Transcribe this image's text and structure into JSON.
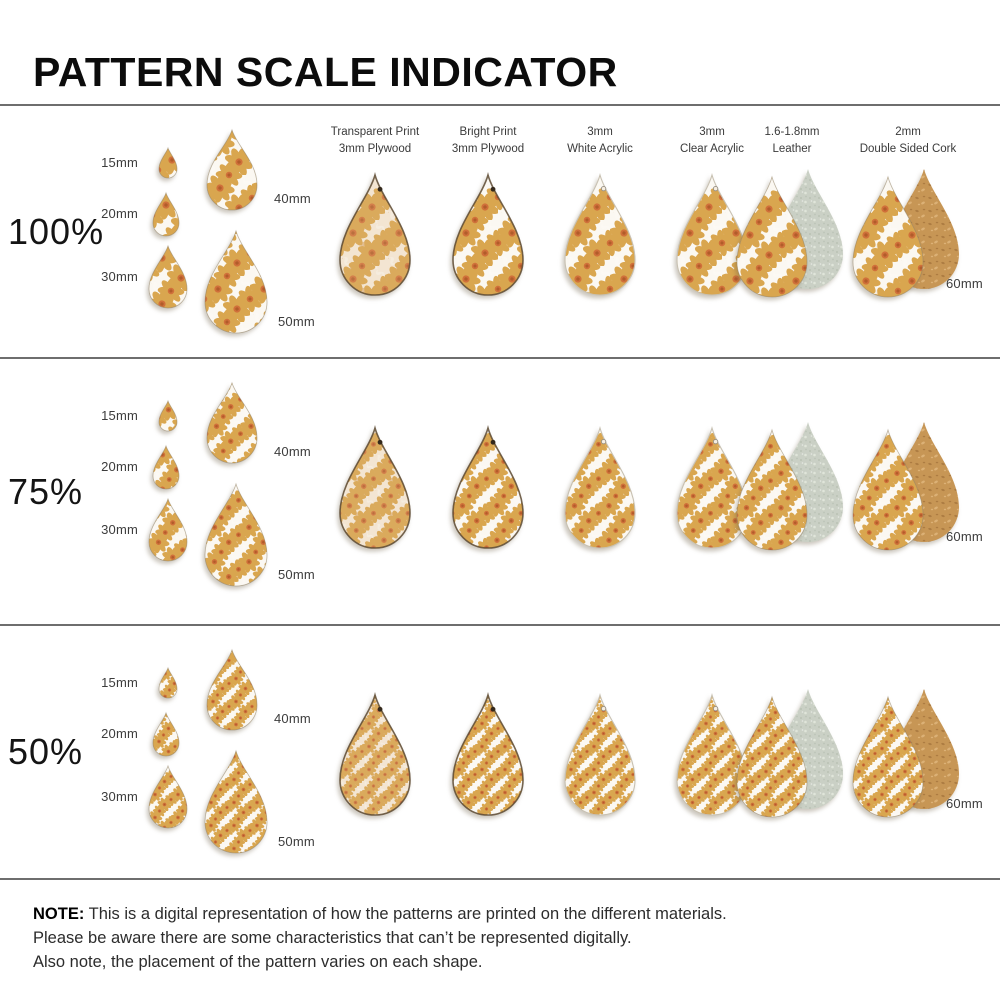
{
  "title": "PATTERN SCALE INDICATOR",
  "materials": [
    {
      "line1": "Transparent Print",
      "line2": "3mm Plywood"
    },
    {
      "line1": "Bright Print",
      "line2": "3mm Plywood"
    },
    {
      "line1": "3mm",
      "line2": "White Acrylic"
    },
    {
      "line1": "3mm",
      "line2": "Clear Acrylic"
    },
    {
      "line1": "1.6-1.8mm",
      "line2": "Leather"
    },
    {
      "line1": "2mm",
      "line2": "Double Sided Cork"
    }
  ],
  "rows": [
    {
      "scale": "100%",
      "size_labels": {
        "s15": "15mm",
        "s20": "20mm",
        "s30": "30mm",
        "s40": "40mm",
        "s50": "50mm",
        "s60": "60mm"
      }
    },
    {
      "scale": "75%",
      "size_labels": {
        "s15": "15mm",
        "s20": "20mm",
        "s30": "30mm",
        "s40": "40mm",
        "s50": "50mm",
        "s60": "60mm"
      }
    },
    {
      "scale": "50%",
      "size_labels": {
        "s15": "15mm",
        "s20": "20mm",
        "s30": "30mm",
        "s40": "40mm",
        "s50": "50mm",
        "s60": "60mm"
      }
    }
  ],
  "note": {
    "label": "NOTE:",
    "lines": [
      "This is a digital representation of how the patterns are printed on the different materials.",
      "Please be aware there are some characteristics that can’t be represented digitally.",
      "Also note, the placement of the pattern varies on each shape."
    ]
  },
  "colors": {
    "petal": "#d9a64f",
    "flower_center": "#d0703a",
    "flower_center_dark": "#b25c2a",
    "white_flower": "#fdfbf5",
    "cream_base": "#f6eee1",
    "wood_base": "#e3bf92",
    "plywood_edge": "#5d4a33",
    "acrylic_edge": "#c8c1b2",
    "leather_back": "#cad0c5",
    "leather_dot_dark": "#bcc4b7",
    "leather_dot_light": "#e0e5da",
    "cork_back": "#c79655",
    "cork_speck_dark": "#ad7c42",
    "cork_speck_light": "#dcb176",
    "hole": "#34291c",
    "divider": "#6e6e6e"
  }
}
